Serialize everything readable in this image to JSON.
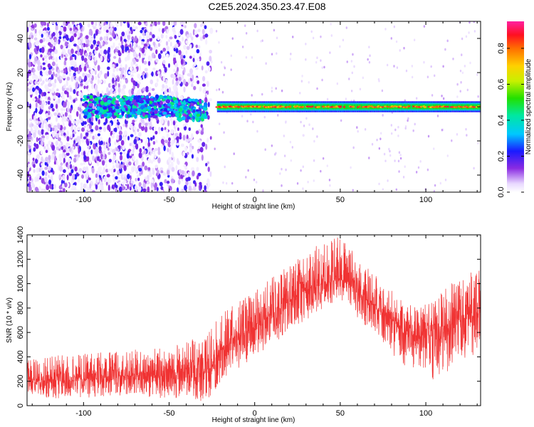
{
  "title": "C2E5.2024.350.23.47.E08",
  "colors": {
    "snr_line": "#f03232",
    "axis": "#000000",
    "background": "#ffffff"
  },
  "chart_data": [
    {
      "type": "heatmap",
      "xlabel": "Height of straight line (km)",
      "ylabel": "Frequency (Hz)",
      "xlim": [
        -133,
        132
      ],
      "ylim": [
        -50,
        50
      ],
      "x_ticks": [
        -100,
        -50,
        0,
        50,
        100
      ],
      "y_ticks": [
        -40,
        -20,
        0,
        20,
        40
      ],
      "colorbar": {
        "label": "Normalized spectral amplitude",
        "range": [
          0,
          0.95
        ],
        "ticks": [
          "0.0",
          "0.2",
          "0.4",
          "0.6",
          "0.8"
        ],
        "tick_values": [
          0.0,
          0.2,
          0.4,
          0.6,
          0.8
        ],
        "colormap": "rainbow (white → violet → blue → cyan → green → yellow → orange → red → magenta)"
      },
      "features": [
        {
          "x_range": [
            -133,
            -25
          ],
          "frequency_range": [
            -50,
            50
          ],
          "amplitude": "0.02–0.2",
          "note": "scattered speckle noise"
        },
        {
          "x_range": [
            -100,
            -28
          ],
          "center_frequency": 0,
          "amplitude": "0.2–0.5",
          "note": "noisy band near 0 Hz"
        },
        {
          "x_range": [
            -22,
            132
          ],
          "center_frequency": 0,
          "bandwidth": 6,
          "amplitude": "0.3–0.9",
          "note": "narrow strong band, red peaks near 0 Hz"
        }
      ]
    },
    {
      "type": "line",
      "xlabel": "Height of straight line (km)",
      "ylabel": "SNR (10 * v/v)",
      "xlim": [
        -133,
        132
      ],
      "ylim": [
        0,
        1400
      ],
      "x_ticks": [
        -100,
        -50,
        0,
        50,
        100
      ],
      "y_ticks": [
        0,
        200,
        400,
        600,
        800,
        1000,
        1200,
        1400
      ],
      "envelope": {
        "x": [
          -133,
          -110,
          -90,
          -70,
          -50,
          -35,
          -27,
          -20,
          -10,
          0,
          10,
          20,
          30,
          40,
          48,
          55,
          65,
          75,
          85,
          95,
          102,
          110,
          120,
          132
        ],
        "lower": [
          60,
          60,
          70,
          70,
          60,
          40,
          30,
          200,
          300,
          400,
          500,
          600,
          700,
          800,
          850,
          800,
          650,
          500,
          350,
          250,
          200,
          250,
          350,
          450
        ],
        "upper": [
          380,
          420,
          440,
          460,
          480,
          550,
          600,
          750,
          850,
          950,
          1050,
          1150,
          1250,
          1350,
          1400,
          1300,
          1150,
          1000,
          900,
          800,
          850,
          950,
          1050,
          1150
        ],
        "mean": [
          200,
          210,
          230,
          250,
          250,
          260,
          280,
          450,
          550,
          650,
          750,
          850,
          950,
          1000,
          1050,
          1000,
          880,
          750,
          650,
          560,
          580,
          640,
          700,
          780
        ]
      }
    }
  ]
}
